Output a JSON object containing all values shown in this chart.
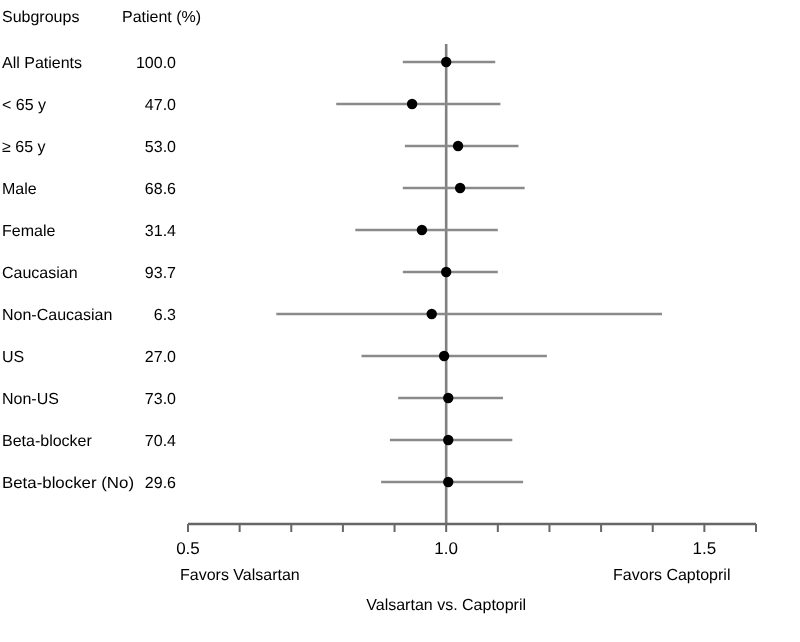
{
  "chart_data": {
    "type": "scatter",
    "orientation": "horizontal",
    "ylabel": "Subgroups",
    "y2label": "Patient (%)",
    "xlabel": "Valsartan vs. Captopril",
    "categories": [
      "All Patients",
      "< 65 y",
      "≥ 65 y",
      "Male",
      "Female",
      "Caucasian",
      "Non-Caucasian",
      "US",
      "Non-US",
      "Beta-blocker",
      "Beta-blocker (No)"
    ],
    "y2_categories": [
      "100.0",
      "47.0",
      "53.0",
      "68.6",
      "31.4",
      "93.7",
      "6.3",
      "27.0",
      "73.0",
      "70.4",
      "29.6"
    ],
    "series": [
      {
        "color": "#000000",
        "values": [
          1.0,
          0.934,
          1.023,
          1.027,
          0.953,
          1.0,
          0.972,
          0.996,
          1.004,
          1.004,
          1.004
        ],
        "errors": [
          [
            0.916,
            1.095
          ],
          [
            0.787,
            1.105
          ],
          [
            0.92,
            1.14
          ],
          [
            0.916,
            1.152
          ],
          [
            0.824,
            1.1
          ],
          [
            0.916,
            1.1
          ],
          [
            0.671,
            1.418
          ],
          [
            0.836,
            1.195
          ],
          [
            0.907,
            1.11
          ],
          [
            0.891,
            1.128
          ],
          [
            0.874,
            1.149
          ]
        ]
      }
    ],
    "xlim": [
      0.5,
      1.6
    ],
    "xticks": [
      0.5,
      {
        "value": 0.6,
        "label": null
      },
      {
        "value": 0.7,
        "label": null
      },
      {
        "value": 0.8,
        "label": null
      },
      {
        "value": 0.9,
        "label": null
      },
      {
        "value": 1.0,
        "label": "1.0"
      },
      {
        "value": 1.1,
        "label": null
      },
      {
        "value": 1.2,
        "label": null
      },
      {
        "value": 1.3,
        "label": null
      },
      {
        "value": 1.4,
        "label": null
      },
      1.5,
      {
        "value": 1.6,
        "label": null
      }
    ],
    "ref_lines": [
      {
        "axis": "x",
        "value": 1.0,
        "color": "#808080"
      }
    ],
    "annotations": [
      "Favors Valsartan",
      "Favors Captopril"
    ],
    "marker": "circle",
    "grid": false
  }
}
